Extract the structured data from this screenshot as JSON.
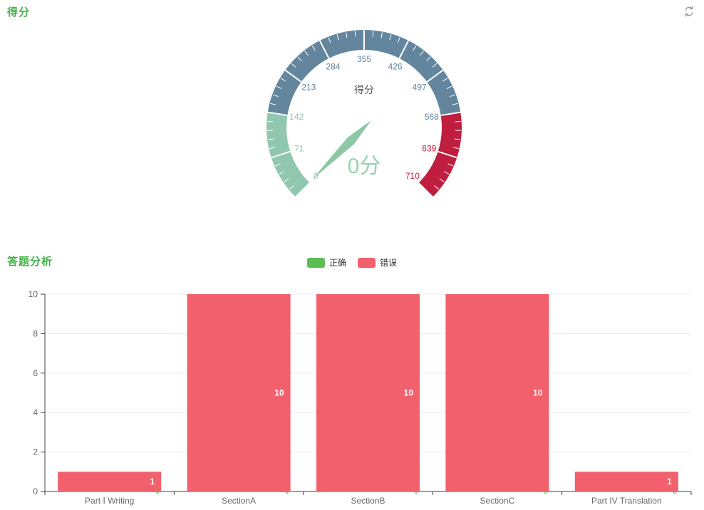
{
  "score_panel": {
    "title": "得分"
  },
  "analysis_panel": {
    "title": "答题分析",
    "legend": [
      {
        "label": "正确",
        "color": "#5cbd52"
      },
      {
        "label": "错误",
        "color": "#f2606d"
      }
    ]
  },
  "icons": {
    "refresh": "refresh-icon",
    "refresh_color": "#9f9f9f"
  },
  "theme": {
    "panel_title_color": "#43b149",
    "background": "#ffffff"
  },
  "chart_data": [
    {
      "type": "gauge",
      "title": "得分",
      "value": 0,
      "detail_text": "0分",
      "min": 0,
      "max": 710,
      "start_angle": 225,
      "end_angle": -45,
      "tick_values": [
        0,
        71,
        142,
        213,
        284,
        355,
        426,
        497,
        568,
        639,
        710
      ],
      "segments": [
        {
          "to_fraction": 0.2,
          "color": "#91c7ae"
        },
        {
          "to_fraction": 0.8,
          "color": "#63869e"
        },
        {
          "to_fraction": 1.0,
          "color": "#bf1e3e"
        }
      ],
      "needle_color": "#8cc8a5",
      "detail_color": "#95d2b0",
      "title_color": "#555555",
      "tick_color": "#ffffff"
    },
    {
      "type": "bar",
      "title": "答题分析",
      "categories": [
        "Part Ⅰ Writing",
        "SectionA",
        "SectionB",
        "SectionC",
        "Part IV Translation"
      ],
      "series": [
        {
          "name": "正确",
          "color": "#5cbd52",
          "values": [
            0,
            0,
            0,
            0,
            0
          ]
        },
        {
          "name": "错误",
          "color": "#f2606d",
          "values": [
            1,
            10,
            10,
            10,
            1
          ]
        }
      ],
      "stacked": true,
      "ylim": [
        0,
        10
      ],
      "y_ticks": [
        0,
        2,
        4,
        6,
        8,
        10
      ],
      "grid": true,
      "legend_position": "top-center",
      "bar_value_label_color": "#ffffff",
      "axis_label_color": "#666666",
      "grid_color": "#e9e9e9",
      "axis_line_color": "#404040"
    }
  ]
}
